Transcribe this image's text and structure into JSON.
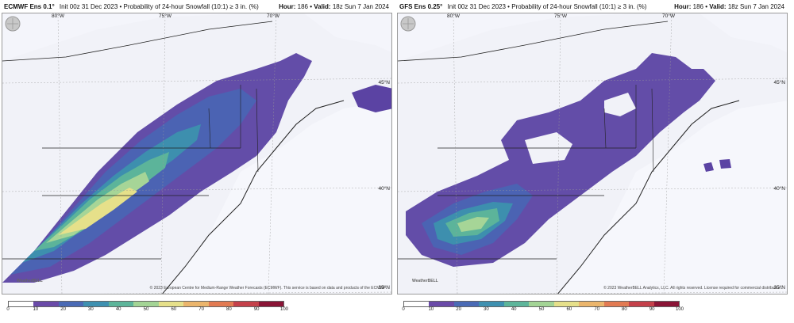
{
  "panels": [
    {
      "model": "ECMWF Ens 0.1°",
      "desc": "Init 00z 31 Dec 2023 • Probability of 24-hour Snowfall (10:1) ≥ 3 in. (%)",
      "hour_label": "Hour:",
      "hour_value": "186",
      "valid_label": "• Valid:",
      "valid_value": "18z Sun 7 Jan 2024",
      "coords": {
        "lon80": "80°W",
        "lon75": "75°W",
        "lon70": "70°W",
        "lat45": "45°N",
        "lat40": "40°N",
        "lat35": "35°N"
      },
      "logo": "WeatherBELL",
      "credit": "© 2023 European Centre for Medium-Range Weather Forecasts (ECMWF). This service is based on data and products of the ECMWF."
    },
    {
      "model": "GFS Ens 0.25°",
      "desc": "Init 00z 31 Dec 2023 • Probability of 24-hour Snowfall (10:1) ≥ 3 in. (%)",
      "hour_label": "Hour:",
      "hour_value": "186",
      "valid_label": "• Valid:",
      "valid_value": "18z Sun 7 Jan 2024",
      "coords": {
        "lon80": "80°W",
        "lon75": "75°W",
        "lon70": "70°W",
        "lat45": "45°N",
        "lat40": "40°N",
        "lat35": "35°N"
      },
      "logo": "WeatherBELL",
      "credit": "© 2023 WeatherBELL Analytics, LLC. All rights reserved. License required for commercial distribution."
    }
  ],
  "scale": {
    "ticks": [
      "0",
      "10",
      "20",
      "30",
      "40",
      "50",
      "60",
      "70",
      "80",
      "90",
      "100"
    ],
    "colors": [
      "#ffffff",
      "#6a4aa8",
      "#4a6ab5",
      "#3e90b0",
      "#5db59a",
      "#a3d495",
      "#e6e08a",
      "#ebb56c",
      "#e27a52",
      "#c4404a",
      "#8a1436"
    ]
  }
}
